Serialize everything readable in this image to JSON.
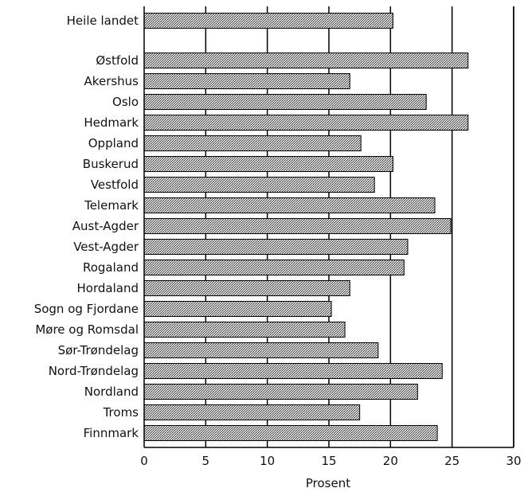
{
  "chart_data": {
    "type": "bar",
    "orientation": "horizontal",
    "title": "",
    "xlabel": "Prosent",
    "ylabel": "",
    "xlim": [
      0,
      30
    ],
    "xticks": [
      0,
      5,
      10,
      15,
      20,
      25,
      30
    ],
    "grid": "vertical",
    "categories": [
      "Heile landet",
      "Østfold",
      "Akershus",
      "Oslo",
      "Hedmark",
      "Oppland",
      "Buskerud",
      "Vestfold",
      "Telemark",
      "Aust-Agder",
      "Vest-Agder",
      "Rogaland",
      "Hordaland",
      "Sogn og Fjordane",
      "Møre og Romsdal",
      "Sør-Trøndelag",
      "Nord-Trøndelag",
      "Nordland",
      "Troms",
      "Finnmark"
    ],
    "values": [
      20.2,
      26.3,
      16.7,
      22.9,
      26.3,
      17.6,
      20.2,
      18.7,
      23.6,
      24.9,
      21.4,
      21.1,
      16.7,
      15.2,
      16.3,
      19.0,
      24.2,
      22.2,
      17.5,
      23.8
    ],
    "colors": {
      "bar_fill": "#8a8a8a",
      "bar_stroke": "#000000",
      "grid": "#000000"
    }
  }
}
